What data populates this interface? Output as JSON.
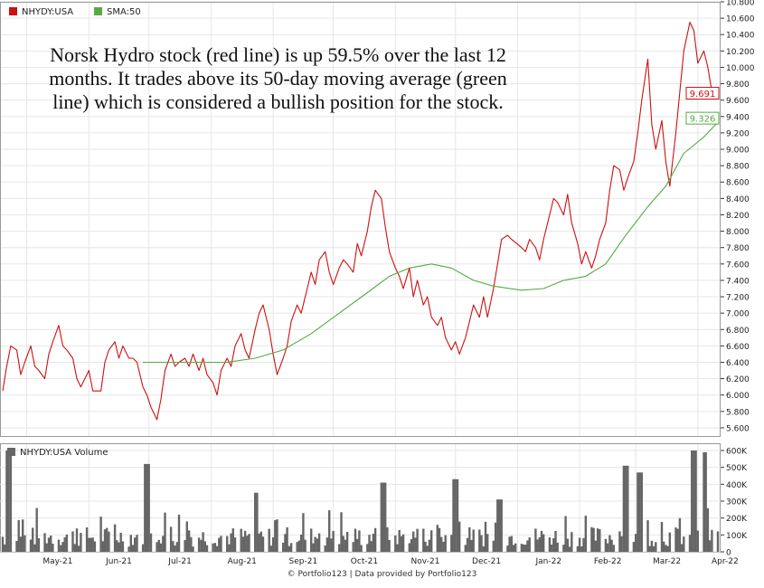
{
  "annotation": "Norsk Hydro stock (red line) is up 59.5% over the last 12 months. It trades above its 50-day moving average (green line) which is considered a bullish position for the stock.",
  "credit": "© Portfolio123 | Data provided by Portfolio123",
  "colors": {
    "price": "#cc1111",
    "sma": "#55aa44",
    "volume": "#666666",
    "grid": "#e6e6e6",
    "axis": "#333333"
  },
  "chart_data": [
    {
      "type": "line",
      "legend": [
        {
          "label": "NHYDY:USA",
          "color": "#cc1111"
        },
        {
          "label": "SMA:50",
          "color": "#55aa44"
        }
      ],
      "x_ticks": [
        "May-21",
        "Jun-21",
        "Jul-21",
        "Aug-21",
        "Sep-21",
        "Oct-21",
        "Nov-21",
        "Dec-21",
        "Jan-22",
        "Feb-22",
        "Mar-22",
        "Apr-22"
      ],
      "x_range": [
        "2021-04-19",
        "2022-04-11"
      ],
      "ylim": [
        5.5,
        10.8
      ],
      "y_ticks": [
        "5.600",
        "5.800",
        "6.000",
        "6.200",
        "6.400",
        "6.600",
        "6.800",
        "7.000",
        "7.200",
        "7.400",
        "7.600",
        "7.800",
        "8.000",
        "8.200",
        "8.400",
        "8.600",
        "8.800",
        "9.000",
        "9.200",
        "9.400",
        "9.600",
        "9.800",
        "10.000",
        "10.200",
        "10.400",
        "10.600",
        "10.800"
      ],
      "series": [
        {
          "name": "NHYDY:USA",
          "color": "#cc1111",
          "last_label": "9.691",
          "points": [
            [
              "2021-04-19",
              6.05
            ],
            [
              "2021-04-21",
              6.35
            ],
            [
              "2021-04-23",
              6.6
            ],
            [
              "2021-04-26",
              6.55
            ],
            [
              "2021-04-28",
              6.25
            ],
            [
              "2021-04-30",
              6.4
            ],
            [
              "2021-05-03",
              6.6
            ],
            [
              "2021-05-05",
              6.35
            ],
            [
              "2021-05-07",
              6.3
            ],
            [
              "2021-05-10",
              6.2
            ],
            [
              "2021-05-12",
              6.5
            ],
            [
              "2021-05-14",
              6.65
            ],
            [
              "2021-05-17",
              6.85
            ],
            [
              "2021-05-19",
              6.6
            ],
            [
              "2021-05-21",
              6.55
            ],
            [
              "2021-05-24",
              6.45
            ],
            [
              "2021-05-26",
              6.2
            ],
            [
              "2021-05-28",
              6.1
            ],
            [
              "2021-06-01",
              6.3
            ],
            [
              "2021-06-03",
              6.05
            ],
            [
              "2021-06-07",
              6.05
            ],
            [
              "2021-06-09",
              6.4
            ],
            [
              "2021-06-11",
              6.55
            ],
            [
              "2021-06-14",
              6.65
            ],
            [
              "2021-06-16",
              6.45
            ],
            [
              "2021-06-18",
              6.6
            ],
            [
              "2021-06-21",
              6.45
            ],
            [
              "2021-06-23",
              6.45
            ],
            [
              "2021-06-25",
              6.4
            ],
            [
              "2021-06-28",
              6.1
            ],
            [
              "2021-06-30",
              6.0
            ],
            [
              "2021-07-02",
              5.85
            ],
            [
              "2021-07-05",
              5.7
            ],
            [
              "2021-07-07",
              5.95
            ],
            [
              "2021-07-09",
              6.3
            ],
            [
              "2021-07-12",
              6.5
            ],
            [
              "2021-07-14",
              6.35
            ],
            [
              "2021-07-16",
              6.4
            ],
            [
              "2021-07-19",
              6.45
            ],
            [
              "2021-07-21",
              6.35
            ],
            [
              "2021-07-23",
              6.5
            ],
            [
              "2021-07-26",
              6.3
            ],
            [
              "2021-07-28",
              6.45
            ],
            [
              "2021-07-30",
              6.25
            ],
            [
              "2021-08-02",
              6.15
            ],
            [
              "2021-08-04",
              6.0
            ],
            [
              "2021-08-06",
              6.3
            ],
            [
              "2021-08-09",
              6.45
            ],
            [
              "2021-08-11",
              6.35
            ],
            [
              "2021-08-13",
              6.6
            ],
            [
              "2021-08-16",
              6.75
            ],
            [
              "2021-08-18",
              6.55
            ],
            [
              "2021-08-20",
              6.45
            ],
            [
              "2021-08-23",
              6.8
            ],
            [
              "2021-08-25",
              7.0
            ],
            [
              "2021-08-27",
              7.1
            ],
            [
              "2021-08-30",
              6.8
            ],
            [
              "2021-09-01",
              6.5
            ],
            [
              "2021-09-03",
              6.25
            ],
            [
              "2021-09-06",
              6.45
            ],
            [
              "2021-09-08",
              6.6
            ],
            [
              "2021-09-10",
              6.9
            ],
            [
              "2021-09-13",
              7.1
            ],
            [
              "2021-09-15",
              7.0
            ],
            [
              "2021-09-17",
              7.2
            ],
            [
              "2021-09-20",
              7.5
            ],
            [
              "2021-09-22",
              7.35
            ],
            [
              "2021-09-24",
              7.65
            ],
            [
              "2021-09-27",
              7.75
            ],
            [
              "2021-09-29",
              7.5
            ],
            [
              "2021-10-01",
              7.35
            ],
            [
              "2021-10-04",
              7.55
            ],
            [
              "2021-10-06",
              7.65
            ],
            [
              "2021-10-08",
              7.6
            ],
            [
              "2021-10-11",
              7.5
            ],
            [
              "2021-10-13",
              7.85
            ],
            [
              "2021-10-15",
              7.7
            ],
            [
              "2021-10-18",
              8.0
            ],
            [
              "2021-10-20",
              8.3
            ],
            [
              "2021-10-22",
              8.5
            ],
            [
              "2021-10-25",
              8.4
            ],
            [
              "2021-10-27",
              8.05
            ],
            [
              "2021-10-29",
              7.75
            ],
            [
              "2021-11-01",
              7.55
            ],
            [
              "2021-11-03",
              7.45
            ],
            [
              "2021-11-05",
              7.3
            ],
            [
              "2021-11-08",
              7.55
            ],
            [
              "2021-11-10",
              7.2
            ],
            [
              "2021-11-12",
              7.4
            ],
            [
              "2021-11-15",
              7.1
            ],
            [
              "2021-11-17",
              7.2
            ],
            [
              "2021-11-19",
              6.95
            ],
            [
              "2021-11-22",
              6.85
            ],
            [
              "2021-11-24",
              6.95
            ],
            [
              "2021-11-26",
              6.7
            ],
            [
              "2021-11-29",
              6.55
            ],
            [
              "2021-12-01",
              6.65
            ],
            [
              "2021-12-03",
              6.5
            ],
            [
              "2021-12-06",
              6.7
            ],
            [
              "2021-12-08",
              6.9
            ],
            [
              "2021-12-10",
              7.1
            ],
            [
              "2021-12-13",
              6.95
            ],
            [
              "2021-12-15",
              7.2
            ],
            [
              "2021-12-17",
              6.95
            ],
            [
              "2021-12-20",
              7.3
            ],
            [
              "2021-12-22",
              7.6
            ],
            [
              "2021-12-24",
              7.9
            ],
            [
              "2021-12-27",
              7.95
            ],
            [
              "2021-12-29",
              7.9
            ],
            [
              "2022-01-03",
              7.8
            ],
            [
              "2022-01-05",
              7.75
            ],
            [
              "2022-01-07",
              7.9
            ],
            [
              "2022-01-10",
              7.8
            ],
            [
              "2022-01-12",
              7.65
            ],
            [
              "2022-01-14",
              7.9
            ],
            [
              "2022-01-17",
              8.2
            ],
            [
              "2022-01-19",
              8.4
            ],
            [
              "2022-01-21",
              8.35
            ],
            [
              "2022-01-24",
              8.2
            ],
            [
              "2022-01-26",
              8.45
            ],
            [
              "2022-01-28",
              8.1
            ],
            [
              "2022-01-31",
              7.85
            ],
            [
              "2022-02-02",
              7.6
            ],
            [
              "2022-02-04",
              7.75
            ],
            [
              "2022-02-07",
              7.55
            ],
            [
              "2022-02-09",
              7.7
            ],
            [
              "2022-02-11",
              7.9
            ],
            [
              "2022-02-14",
              8.1
            ],
            [
              "2022-02-16",
              8.5
            ],
            [
              "2022-02-18",
              8.8
            ],
            [
              "2022-02-21",
              8.75
            ],
            [
              "2022-02-23",
              8.5
            ],
            [
              "2022-02-25",
              8.65
            ],
            [
              "2022-02-28",
              8.85
            ],
            [
              "2022-03-02",
              9.2
            ],
            [
              "2022-03-04",
              9.6
            ],
            [
              "2022-03-07",
              10.1
            ],
            [
              "2022-03-09",
              9.3
            ],
            [
              "2022-03-11",
              9.0
            ],
            [
              "2022-03-14",
              9.35
            ],
            [
              "2022-03-16",
              8.85
            ],
            [
              "2022-03-18",
              8.55
            ],
            [
              "2022-03-21",
              9.2
            ],
            [
              "2022-03-23",
              9.7
            ],
            [
              "2022-03-25",
              10.2
            ],
            [
              "2022-03-28",
              10.55
            ],
            [
              "2022-03-30",
              10.45
            ],
            [
              "2022-04-01",
              10.05
            ],
            [
              "2022-04-04",
              10.2
            ],
            [
              "2022-04-06",
              10.0
            ],
            [
              "2022-04-08",
              9.7
            ],
            [
              "2022-04-11",
              9.69
            ]
          ]
        },
        {
          "name": "SMA:50",
          "color": "#55aa44",
          "last_label": "9.326",
          "points": [
            [
              "2021-06-28",
              6.4
            ],
            [
              "2021-07-12",
              6.4
            ],
            [
              "2021-07-26",
              6.4
            ],
            [
              "2021-08-09",
              6.4
            ],
            [
              "2021-08-23",
              6.45
            ],
            [
              "2021-09-06",
              6.55
            ],
            [
              "2021-09-20",
              6.75
            ],
            [
              "2021-10-04",
              7.0
            ],
            [
              "2021-10-18",
              7.25
            ],
            [
              "2021-10-29",
              7.45
            ],
            [
              "2021-11-08",
              7.55
            ],
            [
              "2021-11-19",
              7.6
            ],
            [
              "2021-11-29",
              7.55
            ],
            [
              "2021-12-10",
              7.4
            ],
            [
              "2021-12-20",
              7.33
            ],
            [
              "2022-01-03",
              7.28
            ],
            [
              "2022-01-14",
              7.3
            ],
            [
              "2022-01-24",
              7.4
            ],
            [
              "2022-02-04",
              7.45
            ],
            [
              "2022-02-14",
              7.6
            ],
            [
              "2022-02-24",
              7.95
            ],
            [
              "2022-03-07",
              8.3
            ],
            [
              "2022-03-16",
              8.55
            ],
            [
              "2022-03-25",
              8.95
            ],
            [
              "2022-04-04",
              9.15
            ],
            [
              "2022-04-11",
              9.33
            ]
          ]
        }
      ]
    },
    {
      "type": "bar",
      "legend": [
        {
          "label": "NHYDY:USA Volume",
          "color": "#666666"
        }
      ],
      "ylim": [
        0,
        600000
      ],
      "y_ticks": [
        "0",
        "100K",
        "200K",
        "300K",
        "400K",
        "500K",
        "600K"
      ],
      "spikes": [
        [
          "2021-04-22",
          600000
        ],
        [
          "2021-06-30",
          520000
        ],
        [
          "2021-08-23",
          350000
        ],
        [
          "2021-10-26",
          410000
        ],
        [
          "2021-12-01",
          430000
        ],
        [
          "2021-12-23",
          310000
        ],
        [
          "2022-02-24",
          510000
        ],
        [
          "2022-03-03",
          470000
        ],
        [
          "2022-03-30",
          600000
        ],
        [
          "2022-04-04",
          590000
        ]
      ],
      "typical_range": [
        30000,
        180000
      ]
    }
  ]
}
